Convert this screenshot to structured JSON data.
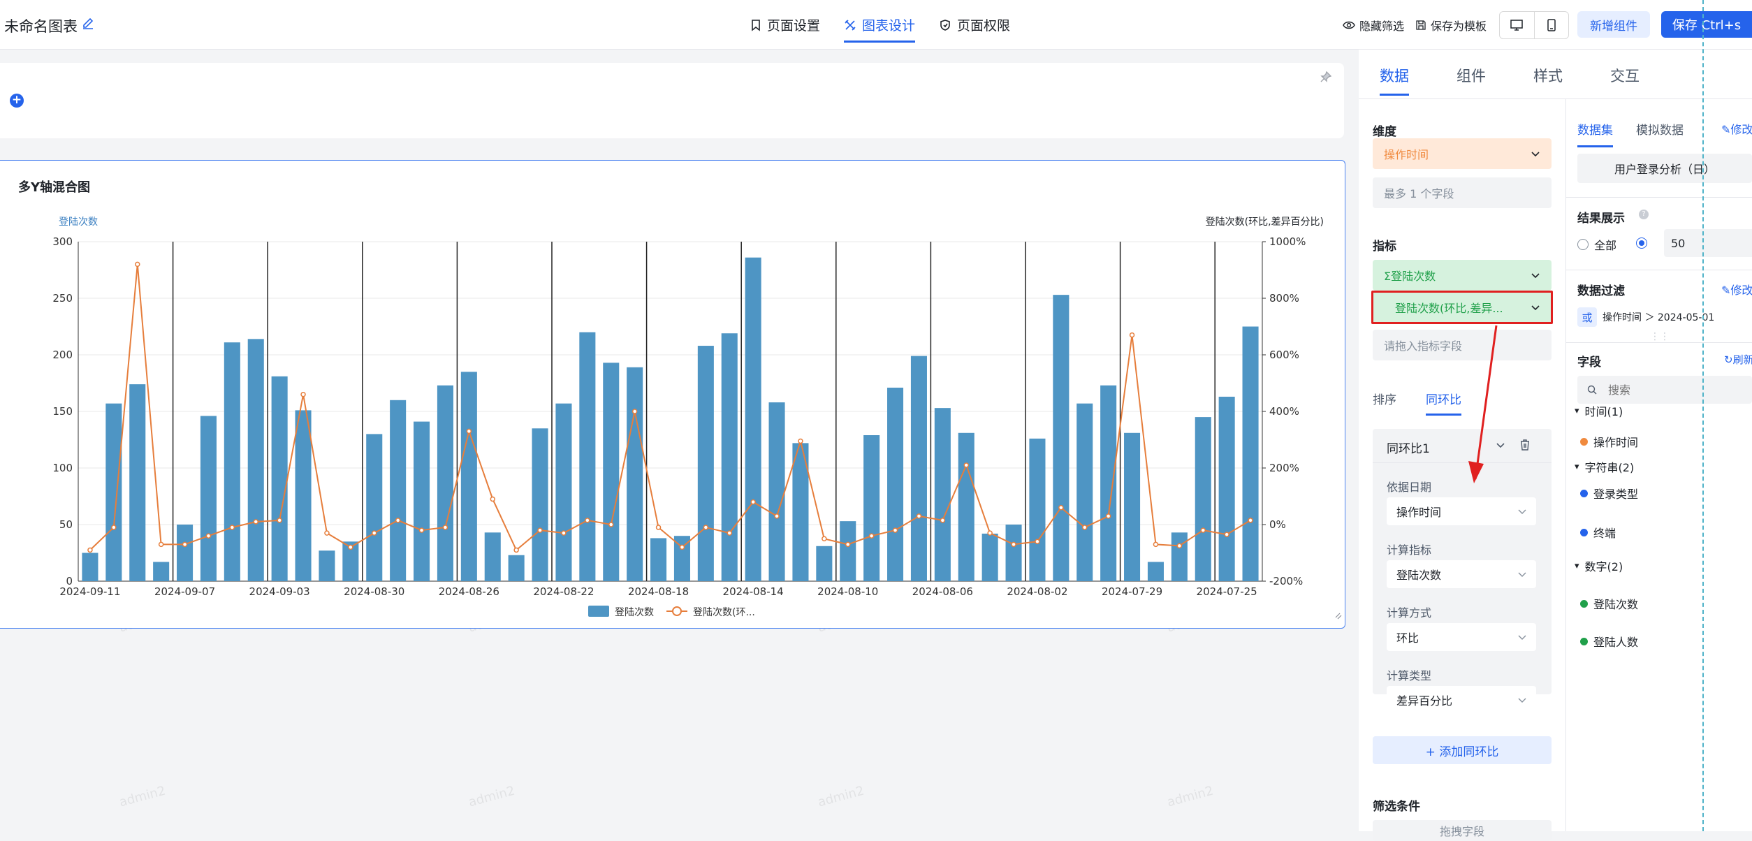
{
  "header": {
    "chart_name": "未命名图表",
    "tabs": [
      {
        "label": "页面设置",
        "icon": "bookmark-icon"
      },
      {
        "label": "图表设计",
        "icon": "design-icon",
        "active": true
      },
      {
        "label": "页面权限",
        "icon": "shield-icon"
      }
    ],
    "hide_filter": "隐藏筛选",
    "save_template": "保存为模板",
    "add_component": "新增组件",
    "save": "保存 Ctrl+s"
  },
  "watermark": "admin2",
  "chart_card": {
    "title": "多Y轴混合图"
  },
  "chart_data": {
    "type": "bar",
    "left_axis_label": "登陆次数",
    "right_axis_label": "登陆次数(环比,差异百分比)",
    "yticks_left": [
      "0",
      "50",
      "100",
      "150",
      "200",
      "250",
      "300"
    ],
    "yticks_right": [
      "-200%",
      "0%",
      "200%",
      "400%",
      "600%",
      "800%",
      "1000%"
    ],
    "ylim_left": [
      0,
      300
    ],
    "ylim_right": [
      -200,
      1000
    ],
    "xtick_labels": [
      "2024-09-11",
      "2024-09-07",
      "2024-09-03",
      "2024-08-30",
      "2024-08-26",
      "2024-08-22",
      "2024-08-18",
      "2024-08-14",
      "2024-08-10",
      "2024-08-06",
      "2024-08-02",
      "2024-07-29",
      "2024-07-25"
    ],
    "bar_values": [
      25,
      157,
      174,
      17,
      50,
      146,
      211,
      214,
      181,
      151,
      27,
      35,
      130,
      160,
      141,
      173,
      185,
      43,
      23,
      135,
      157,
      220,
      193,
      189,
      38,
      40,
      208,
      219,
      286,
      158,
      122,
      31,
      53,
      129,
      171,
      199,
      153,
      131,
      42,
      50,
      126,
      253,
      157,
      173,
      131,
      17,
      43,
      145,
      163,
      225
    ],
    "line_values": [
      -90,
      -10,
      920,
      -70,
      -70,
      -40,
      -10,
      10,
      15,
      460,
      -30,
      -80,
      -30,
      15,
      -20,
      -10,
      330,
      90,
      -90,
      -20,
      -30,
      15,
      0,
      400,
      -10,
      -80,
      -10,
      -30,
      80,
      30,
      295,
      -50,
      -70,
      -40,
      -20,
      30,
      15,
      210,
      -30,
      -70,
      -60,
      60,
      -10,
      30,
      670,
      -70,
      -75,
      -20,
      -35,
      15
    ],
    "bar_color": "#4e95c4",
    "line_color": "#e67e3c",
    "legend": [
      "登陆次数",
      "登陆次数(环..."
    ]
  },
  "right_panel": {
    "tabs": [
      "数据",
      "组件",
      "样式",
      "交互"
    ],
    "dimension_label": "维度",
    "dimension_field": "操作时间",
    "dimension_hint": "最多 1 个字段",
    "metric_label": "指标",
    "metric_fields": [
      "Σ登陆次数",
      "登陆次数(环比,差异..."
    ],
    "metric_hint": "请拖入指标字段",
    "sub_tabs": [
      "排序",
      "同环比"
    ],
    "yoy": {
      "name": "同环比1",
      "base_date_label": "依据日期",
      "base_date_value": "操作时间",
      "calc_metric_label": "计算指标",
      "calc_metric_value": "登陆次数",
      "calc_method_label": "计算方式",
      "calc_method_value": "环比",
      "calc_type_label": "计算类型",
      "calc_type_value": "差异百分比"
    },
    "add_yoy": "+ 添加同环比",
    "filter_label": "筛选条件",
    "filter_partial": "拖拽字段"
  },
  "dataset_panel": {
    "tabs": [
      "数据集",
      "模拟数据"
    ],
    "edit": "修改",
    "dataset_name": "用户登录分析（日）",
    "result_label": "结果展示",
    "radio_all": "全部",
    "radio_count": "50",
    "filter_label": "数据过滤",
    "filter_edit": "修改",
    "filter_or": "或",
    "filter_condition": "操作时间 ＞ 2024-05-01",
    "fields_label": "字段",
    "refresh": "刷新",
    "search_placeholder": "搜索",
    "groups": [
      {
        "name": "时间(1)",
        "items": [
          {
            "label": "操作时间",
            "color": "#f08a3e"
          }
        ]
      },
      {
        "name": "字符串(2)",
        "items": [
          {
            "label": "登录类型",
            "color": "#2563eb"
          },
          {
            "label": "终端",
            "color": "#2563eb"
          }
        ]
      },
      {
        "name": "数字(2)",
        "items": [
          {
            "label": "登陆次数",
            "color": "#20a04a"
          },
          {
            "label": "登陆人数",
            "color": "#20a04a"
          }
        ]
      }
    ]
  }
}
